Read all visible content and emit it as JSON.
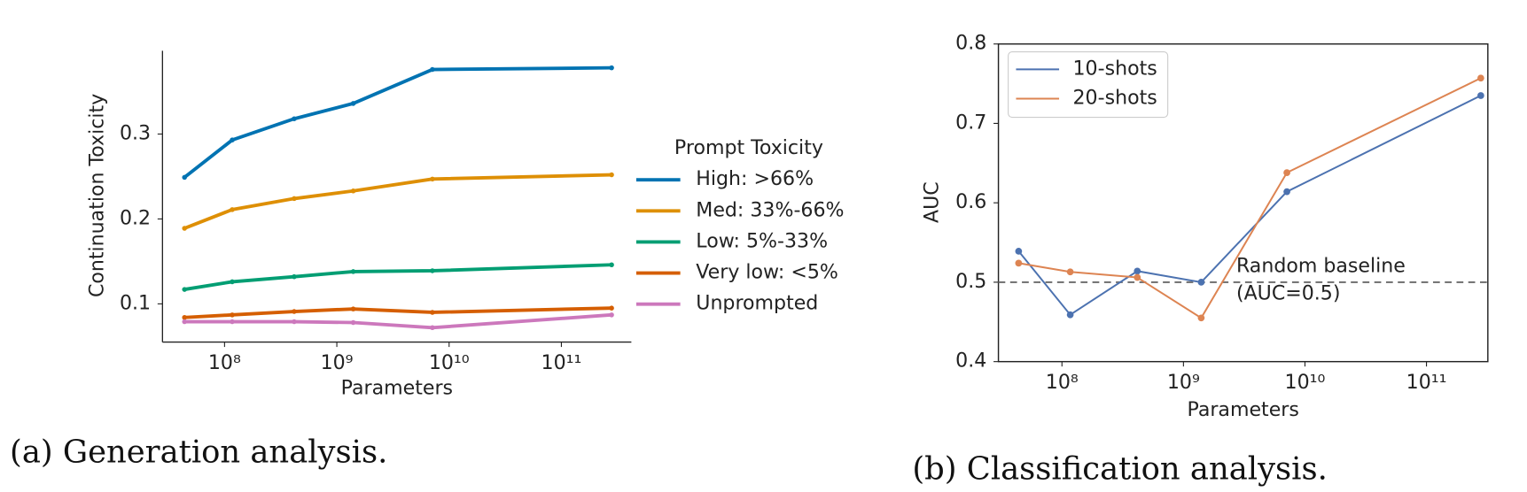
{
  "chart_data": [
    {
      "type": "line",
      "caption": "(a) Generation analysis.",
      "xlabel": "Parameters",
      "ylabel": "Continuation Toxicity",
      "x": [
        44000000,
        117000000,
        417000000,
        1400000000,
        7100000000,
        280000000000
      ],
      "xscale": "log",
      "xlim": [
        28000000,
        420000000000
      ],
      "xticks": [
        {
          "value": 100000000,
          "label": "10⁸"
        },
        {
          "value": 1000000000,
          "label": "10⁹"
        },
        {
          "value": 10000000000,
          "label": "10¹⁰"
        },
        {
          "value": 100000000000,
          "label": "10¹¹"
        }
      ],
      "ylim": [
        0.055,
        0.398
      ],
      "yticks": [
        0.1,
        0.2,
        0.3
      ],
      "legend_title": "Prompt Toxicity",
      "legend": "outside right",
      "series": [
        {
          "name": "High: >66%",
          "color": "#0173b2",
          "values": [
            0.249,
            0.293,
            0.318,
            0.336,
            0.376,
            0.378
          ]
        },
        {
          "name": "Med: 33%-66%",
          "color": "#de8f05",
          "values": [
            0.189,
            0.211,
            0.224,
            0.233,
            0.247,
            0.252
          ]
        },
        {
          "name": "Low: 5%-33%",
          "color": "#029e73",
          "values": [
            0.117,
            0.126,
            0.132,
            0.138,
            0.139,
            0.146
          ]
        },
        {
          "name": "Very low: <5%",
          "color": "#d55e00",
          "values": [
            0.084,
            0.087,
            0.091,
            0.094,
            0.09,
            0.095
          ]
        },
        {
          "name": "Unprompted",
          "color": "#cc78bc",
          "values": [
            0.079,
            0.079,
            0.079,
            0.078,
            0.072,
            0.087
          ]
        }
      ]
    },
    {
      "type": "line",
      "caption": "(b) Classification analysis.",
      "xlabel": "Parameters",
      "ylabel": "AUC",
      "x": [
        44000000,
        117000000,
        417000000,
        1400000000,
        7100000000,
        280000000000
      ],
      "xscale": "log",
      "xlim": [
        30000000,
        320000000000
      ],
      "xticks": [
        {
          "value": 100000000,
          "label": "10⁸"
        },
        {
          "value": 1000000000,
          "label": "10⁹"
        },
        {
          "value": 10000000000,
          "label": "10¹⁰"
        },
        {
          "value": 100000000000,
          "label": "10¹¹"
        }
      ],
      "ylim": [
        0.4,
        0.8
      ],
      "yticks": [
        0.4,
        0.5,
        0.6,
        0.7,
        0.8
      ],
      "legend": "upper left",
      "hline": 0.5,
      "annotation": [
        "Random baseline",
        "(AUC=0.5)"
      ],
      "series": [
        {
          "name": "10-shots",
          "color": "#4c72b0",
          "values": [
            0.539,
            0.459,
            0.514,
            0.5,
            0.614,
            0.735
          ]
        },
        {
          "name": "20-shots",
          "color": "#dd8452",
          "values": [
            0.524,
            0.513,
            0.506,
            0.455,
            0.638,
            0.757
          ]
        }
      ]
    }
  ]
}
